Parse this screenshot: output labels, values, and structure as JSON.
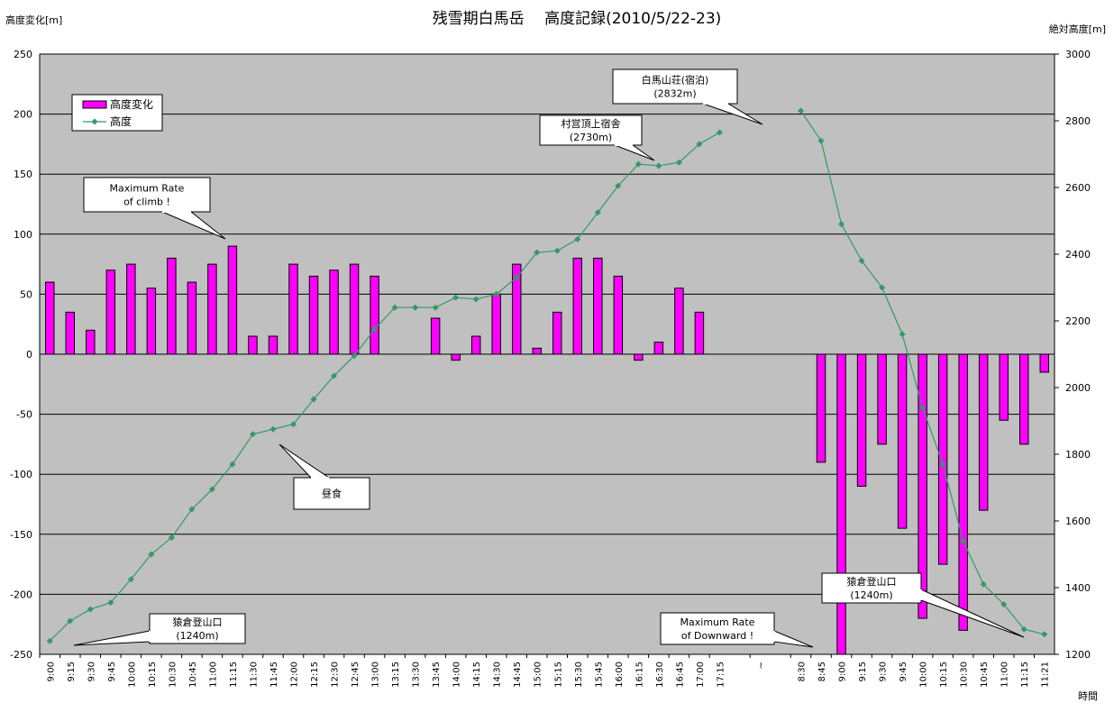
{
  "chart_data": {
    "type": "bar+line",
    "title": "残雪期白馬岳　 高度記録(2010/5/22-23)",
    "y_left_label": "高度変化[m]",
    "y_right_label": "絶対高度[m]",
    "x_label": "時間",
    "y_left_range": [
      -250,
      250
    ],
    "y_left_ticks": [
      250,
      200,
      150,
      100,
      50,
      0,
      -50,
      -100,
      -150,
      -200,
      -250
    ],
    "y_right_range": [
      1200,
      3000
    ],
    "y_right_ticks": [
      3000,
      2800,
      2600,
      2400,
      2200,
      2000,
      1800,
      1600,
      1400,
      1200
    ],
    "grid": "horizontal",
    "legend_position": "top-left",
    "categories": [
      "9:00",
      "9:15",
      "9:30",
      "9:45",
      "10:00",
      "10:15",
      "10:30",
      "10:45",
      "11:00",
      "11:15",
      "11:30",
      "11:45",
      "12:00",
      "12:15",
      "12:30",
      "12:45",
      "13:00",
      "13:15",
      "13:30",
      "13:45",
      "14:00",
      "14:15",
      "14:30",
      "14:45",
      "15:00",
      "15:15",
      "15:30",
      "15:45",
      "16:00",
      "16:15",
      "16:30",
      "16:45",
      "17:00",
      "17:15",
      "",
      "~",
      "",
      "8:30",
      "8:45",
      "9:00",
      "9:15",
      "9:30",
      "9:45",
      "10:00",
      "10:15",
      "10:30",
      "10:45",
      "11:00",
      "11:15",
      "11:21"
    ],
    "series": [
      {
        "name": "高度変化",
        "type": "bar",
        "axis": "left",
        "color": "#ff00ff",
        "values": [
          60,
          35,
          20,
          70,
          75,
          55,
          80,
          60,
          75,
          90,
          15,
          15,
          75,
          65,
          70,
          75,
          65,
          null,
          null,
          30,
          -5,
          15,
          50,
          75,
          5,
          35,
          80,
          80,
          65,
          -5,
          10,
          55,
          35,
          null,
          null,
          null,
          null,
          null,
          -90,
          -250,
          -110,
          -75,
          -145,
          -220,
          -175,
          -230,
          -130,
          -55,
          -75,
          -15
        ]
      },
      {
        "name": "高度",
        "type": "line",
        "axis": "right",
        "color": "#339966",
        "values": [
          1240,
          1300,
          1335,
          1355,
          1425,
          1500,
          1550,
          1635,
          1695,
          1770,
          1860,
          1875,
          1890,
          1965,
          2035,
          2095,
          2175,
          2240,
          2240,
          2240,
          2270,
          2265,
          2280,
          2330,
          2405,
          2410,
          2445,
          2525,
          2605,
          2670,
          2665,
          2675,
          2730,
          2765,
          null,
          null,
          null,
          2830,
          2740,
          2490,
          2380,
          2300,
          2160,
          1940,
          1770,
          1540,
          1410,
          1350,
          1275,
          1260
        ]
      }
    ],
    "annotations": [
      {
        "lines": [
          "白馬山荘(宿泊)",
          "(2832m)"
        ]
      },
      {
        "lines": [
          "村営頂上宿舎",
          "(2730m)"
        ]
      },
      {
        "lines": [
          "Maximum Rate",
          "of climb !"
        ]
      },
      {
        "lines": [
          "昼食"
        ]
      },
      {
        "lines": [
          "猿倉登山口",
          "(1240m)"
        ]
      },
      {
        "lines": [
          "Maximum Rate",
          "of Downward !"
        ]
      },
      {
        "lines": [
          "猿倉登山口",
          "(1240m)"
        ]
      }
    ]
  }
}
